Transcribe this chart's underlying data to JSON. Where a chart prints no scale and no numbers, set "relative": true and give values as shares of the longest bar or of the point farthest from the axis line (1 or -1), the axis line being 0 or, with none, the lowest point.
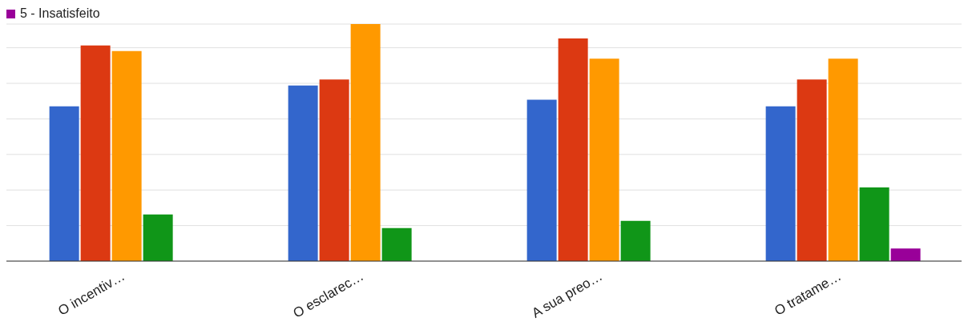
{
  "chart_data": {
    "type": "bar",
    "relative": true,
    "grid": "y",
    "legend": "top left",
    "categories": [
      "O incentiv…",
      "O esclarec…",
      "A sua preo…",
      "O tratame…"
    ],
    "series": [
      {
        "color": "#3366cc",
        "values": [
          0.653,
          0.741,
          0.681,
          0.653
        ]
      },
      {
        "color": "#dc3912",
        "values": [
          0.91,
          0.766,
          0.939,
          0.766
        ]
      },
      {
        "color": "#ff9900",
        "values": [
          0.886,
          1,
          0.854,
          0.854
        ]
      },
      {
        "color": "#109618",
        "values": [
          0.197,
          0.139,
          0.17,
          0.311
        ]
      },
      {
        "name": "5 - Insatisfeito",
        "color": "#990099",
        "values": [
          0,
          0,
          0,
          0.053
        ]
      }
    ]
  }
}
